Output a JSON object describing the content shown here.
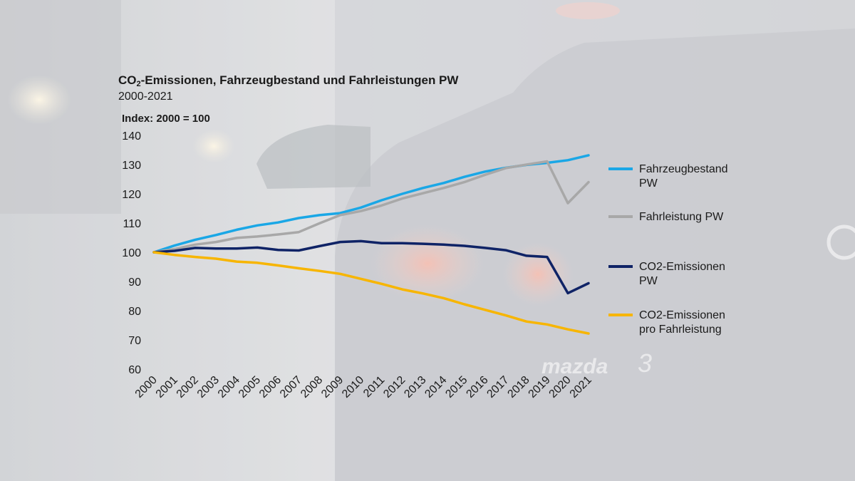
{
  "header": {
    "title_prefix": "CO",
    "title_subscript": "2",
    "title_suffix": "-Emissionen,  Fahrzeugbestand und Fahrleistungen PW",
    "subtitle": "2000-2021",
    "index_label": "Index: 2000 = 100"
  },
  "background": {
    "description_icon": "car-rear-photo",
    "brand_text": "mazda",
    "model_text": "3"
  },
  "chart_data": {
    "type": "line",
    "title": "CO2-Emissionen,  Fahrzeugbestand und Fahrleistungen PW",
    "subtitle": "2000-2021",
    "ylabel": "Index: 2000 = 100",
    "xlabel": "",
    "ylim": [
      60,
      140
    ],
    "yticks": [
      60,
      70,
      80,
      90,
      100,
      110,
      120,
      130,
      140
    ],
    "grid": false,
    "legend_position": "right",
    "categories": [
      "2000",
      "2001",
      "2002",
      "2003",
      "2004",
      "2005",
      "2006",
      "2007",
      "2008",
      "2009",
      "2010",
      "2011",
      "2012",
      "2013",
      "2014",
      "2015",
      "2016",
      "2017",
      "2018",
      "2019",
      "2020",
      "2021"
    ],
    "series": [
      {
        "name": "Fahrzeugbestand PW",
        "legend_lines": [
          "Fahrzeugbestand",
          "PW"
        ],
        "color": "#1aa7e6",
        "values": [
          100,
          102.3,
          104.3,
          105.9,
          107.7,
          109.2,
          110.2,
          111.7,
          112.7,
          113.4,
          115.3,
          117.8,
          120.0,
          122.0,
          123.7,
          125.8,
          127.6,
          128.9,
          129.9,
          130.6,
          131.5,
          133.2
        ]
      },
      {
        "name": "Fahrleistung PW",
        "legend_lines": [
          "Fahrleistung PW"
        ],
        "color": "#a8a8a8",
        "values": [
          100,
          101.1,
          102.6,
          103.5,
          104.9,
          105.4,
          106.1,
          106.9,
          109.9,
          112.7,
          114.1,
          116.0,
          118.4,
          120.2,
          122.0,
          124.0,
          126.5,
          128.8,
          130.0,
          131.1,
          116.8,
          124.0
        ]
      },
      {
        "name": "CO2-Emissionen PW",
        "legend_lines": [
          "CO2-Emissionen",
          "PW"
        ],
        "color": "#0f2366",
        "values": [
          100,
          100.5,
          101.5,
          101.3,
          101.3,
          101.6,
          100.8,
          100.6,
          102.1,
          103.5,
          103.8,
          103.1,
          103.1,
          102.9,
          102.6,
          102.2,
          101.5,
          100.7,
          98.8,
          98.4,
          86.0,
          89.4
        ]
      },
      {
        "name": "CO2-Emissionen pro Fahrleistung",
        "legend_lines": [
          "CO2-Emissionen",
          "pro Fahrleistung"
        ],
        "color": "#f7b500",
        "values": [
          100,
          99.1,
          98.4,
          97.8,
          96.8,
          96.4,
          95.5,
          94.5,
          93.6,
          92.6,
          90.9,
          89.2,
          87.3,
          85.9,
          84.3,
          82.2,
          80.3,
          78.4,
          76.3,
          75.3,
          73.6,
          72.2
        ]
      }
    ]
  }
}
